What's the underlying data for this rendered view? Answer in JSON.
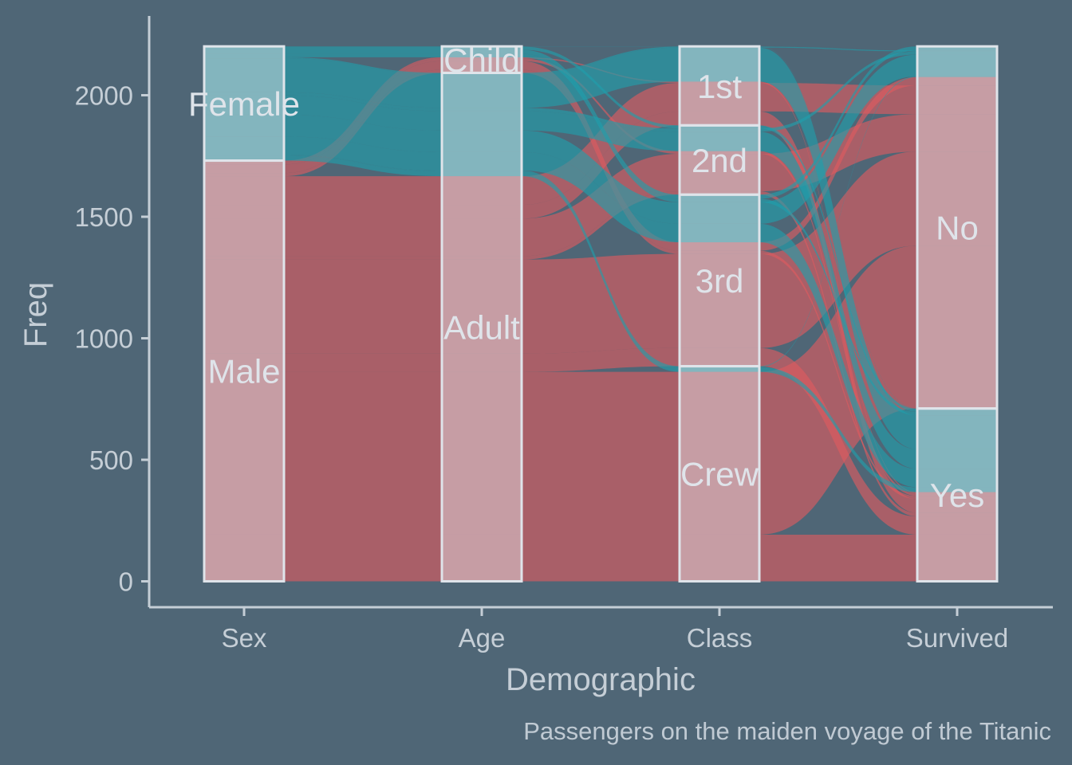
{
  "colors": {
    "background": "#4f6676",
    "male": "#e05a60",
    "female": "#1fa0ad",
    "axis": "#c5ced6",
    "stratum_fill": "#e8e8ee",
    "stratum_stroke": "#dfe4ea",
    "text": "#dfe4ea",
    "caption": "#c0cad3"
  },
  "chart_data": {
    "type": "alluvial",
    "title": "",
    "xlabel": "Demographic",
    "ylabel": "Freq",
    "caption": "Passengers on the maiden voyage of the Titanic",
    "ylim": [
      -100,
      2300
    ],
    "yticks": [
      0,
      500,
      1000,
      1500,
      2000
    ],
    "axes": [
      "Sex",
      "Age",
      "Class",
      "Survived"
    ],
    "fill_variable": "Sex",
    "strata": {
      "Sex": [
        "Male",
        "Female"
      ],
      "Age": [
        "Adult",
        "Child"
      ],
      "Class": [
        "Crew",
        "3rd",
        "2nd",
        "1st"
      ],
      "Survived": [
        "Yes",
        "No"
      ]
    },
    "flows": [
      {
        "Sex": "Male",
        "Age": "Adult",
        "Class": "1st",
        "Survived": "No",
        "Freq": 118
      },
      {
        "Sex": "Male",
        "Age": "Adult",
        "Class": "2nd",
        "Survived": "No",
        "Freq": 154
      },
      {
        "Sex": "Male",
        "Age": "Adult",
        "Class": "3rd",
        "Survived": "No",
        "Freq": 387
      },
      {
        "Sex": "Male",
        "Age": "Adult",
        "Class": "Crew",
        "Survived": "No",
        "Freq": 670
      },
      {
        "Sex": "Male",
        "Age": "Adult",
        "Class": "1st",
        "Survived": "Yes",
        "Freq": 57
      },
      {
        "Sex": "Male",
        "Age": "Adult",
        "Class": "2nd",
        "Survived": "Yes",
        "Freq": 14
      },
      {
        "Sex": "Male",
        "Age": "Adult",
        "Class": "3rd",
        "Survived": "Yes",
        "Freq": 75
      },
      {
        "Sex": "Male",
        "Age": "Adult",
        "Class": "Crew",
        "Survived": "Yes",
        "Freq": 192
      },
      {
        "Sex": "Male",
        "Age": "Child",
        "Class": "3rd",
        "Survived": "No",
        "Freq": 35
      },
      {
        "Sex": "Male",
        "Age": "Child",
        "Class": "1st",
        "Survived": "Yes",
        "Freq": 5
      },
      {
        "Sex": "Male",
        "Age": "Child",
        "Class": "2nd",
        "Survived": "Yes",
        "Freq": 11
      },
      {
        "Sex": "Male",
        "Age": "Child",
        "Class": "3rd",
        "Survived": "Yes",
        "Freq": 13
      },
      {
        "Sex": "Female",
        "Age": "Adult",
        "Class": "1st",
        "Survived": "No",
        "Freq": 4
      },
      {
        "Sex": "Female",
        "Age": "Adult",
        "Class": "2nd",
        "Survived": "No",
        "Freq": 13
      },
      {
        "Sex": "Female",
        "Age": "Adult",
        "Class": "3rd",
        "Survived": "No",
        "Freq": 89
      },
      {
        "Sex": "Female",
        "Age": "Adult",
        "Class": "Crew",
        "Survived": "No",
        "Freq": 3
      },
      {
        "Sex": "Female",
        "Age": "Adult",
        "Class": "1st",
        "Survived": "Yes",
        "Freq": 140
      },
      {
        "Sex": "Female",
        "Age": "Adult",
        "Class": "2nd",
        "Survived": "Yes",
        "Freq": 80
      },
      {
        "Sex": "Female",
        "Age": "Adult",
        "Class": "3rd",
        "Survived": "Yes",
        "Freq": 76
      },
      {
        "Sex": "Female",
        "Age": "Adult",
        "Class": "Crew",
        "Survived": "Yes",
        "Freq": 20
      },
      {
        "Sex": "Female",
        "Age": "Child",
        "Class": "3rd",
        "Survived": "No",
        "Freq": 17
      },
      {
        "Sex": "Female",
        "Age": "Child",
        "Class": "1st",
        "Survived": "Yes",
        "Freq": 1
      },
      {
        "Sex": "Female",
        "Age": "Child",
        "Class": "2nd",
        "Survived": "Yes",
        "Freq": 13
      },
      {
        "Sex": "Female",
        "Age": "Child",
        "Class": "3rd",
        "Survived": "Yes",
        "Freq": 14
      }
    ]
  }
}
